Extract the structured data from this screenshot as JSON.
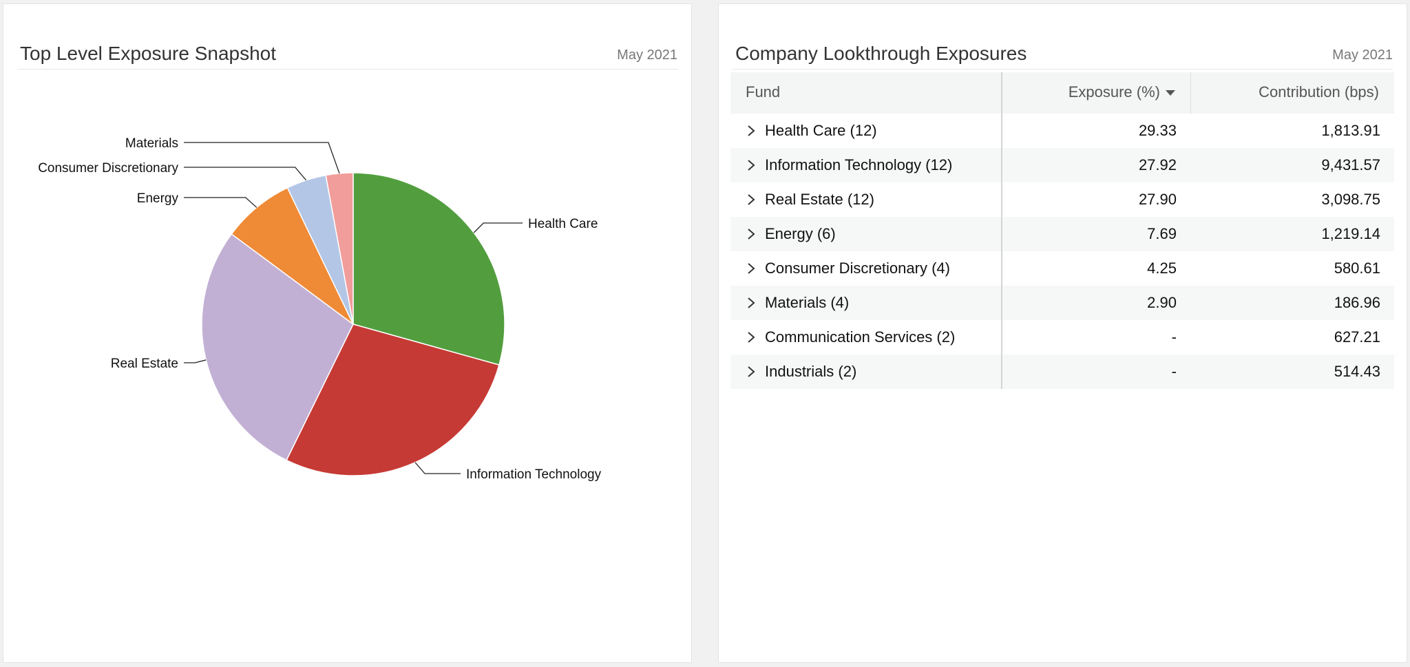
{
  "left_panel": {
    "title": "Top Level Exposure Snapshot",
    "date": "May 2021"
  },
  "right_panel": {
    "title": "Company Lookthrough Exposures",
    "date": "May 2021"
  },
  "chart_data": {
    "type": "pie",
    "title": "Top Level Exposure Snapshot",
    "slices": [
      {
        "label": "Health Care",
        "value": 29.33,
        "color": "#529e3e"
      },
      {
        "label": "Information Technology",
        "value": 27.92,
        "color": "#c63a35"
      },
      {
        "label": "Real Estate",
        "value": 27.9,
        "color": "#c2b0d4"
      },
      {
        "label": "Energy",
        "value": 7.69,
        "color": "#ef8a36"
      },
      {
        "label": "Consumer Discretionary",
        "value": 4.25,
        "color": "#b3c6e6"
      },
      {
        "label": "Materials",
        "value": 2.9,
        "color": "#f19d9b"
      }
    ]
  },
  "table": {
    "columns": {
      "fund": "Fund",
      "exposure": "Exposure (%)",
      "contribution": "Contribution (bps)"
    },
    "rows": [
      {
        "fund": "Health Care (12)",
        "exposure": "29.33",
        "contribution": "1,813.91"
      },
      {
        "fund": "Information Technology (12)",
        "exposure": "27.92",
        "contribution": "9,431.57"
      },
      {
        "fund": "Real Estate (12)",
        "exposure": "27.90",
        "contribution": "3,098.75"
      },
      {
        "fund": "Energy (6)",
        "exposure": "7.69",
        "contribution": "1,219.14"
      },
      {
        "fund": "Consumer Discretionary (4)",
        "exposure": "4.25",
        "contribution": "580.61"
      },
      {
        "fund": "Materials (4)",
        "exposure": "2.90",
        "contribution": "186.96"
      },
      {
        "fund": "Communication Services (2)",
        "exposure": "-",
        "contribution": "627.21"
      },
      {
        "fund": "Industrials (2)",
        "exposure": "-",
        "contribution": "514.43"
      }
    ]
  }
}
